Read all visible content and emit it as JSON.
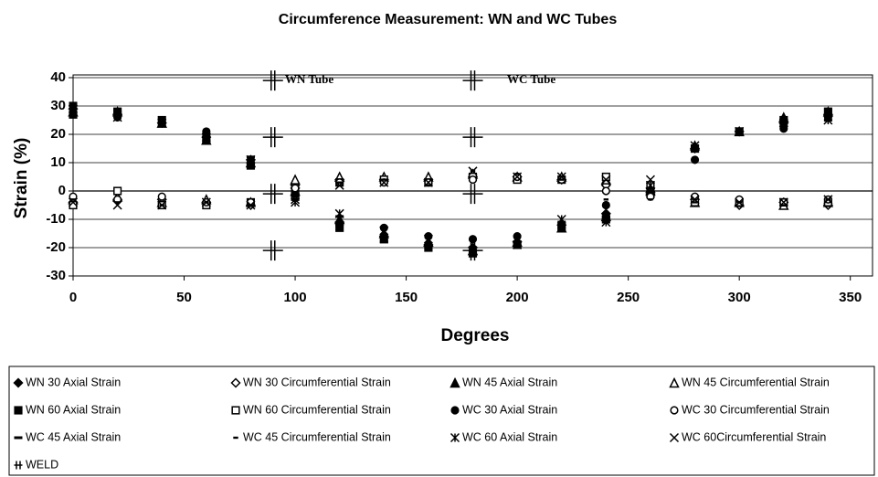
{
  "chart_data": {
    "type": "scatter",
    "title": "Circumference Measurement: WN and WC Tubes",
    "x_label": "Degrees",
    "y_label": "Strain (%)",
    "annotations": [
      "WN Tube",
      "WC Tube"
    ],
    "xlim": [
      0,
      360
    ],
    "xticks": [
      0,
      50,
      100,
      150,
      200,
      250,
      300,
      350
    ],
    "ylim": [
      -30,
      40
    ],
    "yticks": [
      -30,
      -20,
      -10,
      0,
      10,
      20,
      30,
      40
    ],
    "grid": true,
    "x": [
      0,
      20,
      40,
      60,
      80,
      100,
      120,
      140,
      160,
      180,
      200,
      220,
      240,
      260,
      280,
      300,
      320,
      340
    ],
    "series": [
      {
        "name": "WN 30 Axial Strain",
        "marker": "diamond",
        "filled": true,
        "color": "#000000",
        "values": [
          29,
          27,
          24,
          19,
          11,
          1,
          -11,
          -16,
          -19,
          -20,
          -18,
          -12,
          -8,
          1,
          15,
          21,
          24,
          27
        ]
      },
      {
        "name": "WN 30 Circumferential Strain",
        "marker": "diamond",
        "filled": false,
        "color": "#000000",
        "values": [
          -4,
          -3,
          -3,
          -4,
          -5,
          2,
          4,
          4,
          4,
          5,
          5,
          4,
          2,
          -1,
          -3,
          -5,
          -4,
          -5
        ]
      },
      {
        "name": "WN 45 Axial Strain",
        "marker": "triangle",
        "filled": true,
        "color": "#000000",
        "values": [
          28,
          28,
          24,
          18,
          10,
          0,
          -10,
          -15,
          -18,
          -21,
          -18,
          -13,
          -9,
          0,
          16,
          21,
          26,
          28
        ]
      },
      {
        "name": "WN 45 Circumferential Strain",
        "marker": "triangle",
        "filled": false,
        "color": "#000000",
        "values": [
          -3,
          -2,
          -4,
          -3,
          -4,
          4,
          5,
          5,
          5,
          6,
          5,
          5,
          4,
          1,
          -4,
          -4,
          -5,
          -4
        ]
      },
      {
        "name": "WN 60 Axial Strain",
        "marker": "square",
        "filled": true,
        "color": "#000000",
        "values": [
          27,
          28,
          25,
          18,
          9,
          -1,
          -13,
          -17,
          -20,
          -22,
          -19,
          -13,
          -10,
          -1,
          15,
          21,
          25,
          28
        ]
      },
      {
        "name": "WN 60 Circumferential Strain",
        "marker": "square",
        "filled": false,
        "color": "#000000",
        "values": [
          -5,
          0,
          -5,
          -5,
          -4,
          -2,
          3,
          4,
          3,
          5,
          4,
          4,
          5,
          2,
          -4,
          -4,
          -4,
          -4
        ]
      },
      {
        "name": "WC 30 Axial Strain",
        "marker": "circle",
        "filled": true,
        "color": "#000000",
        "values": [
          30,
          26,
          24,
          21,
          10,
          -1,
          -12,
          -13,
          -16,
          -17,
          -16,
          -13,
          -5,
          -2,
          11,
          21,
          22,
          26
        ]
      },
      {
        "name": "WC 30 Circumferential Strain",
        "marker": "circle",
        "filled": false,
        "color": "#000000",
        "values": [
          -2,
          -3,
          -2,
          -4,
          -4,
          1,
          3,
          3,
          3,
          4,
          5,
          4,
          0,
          -2,
          -2,
          -3,
          -4,
          -3
        ]
      },
      {
        "name": "WC 45  Axial Strain",
        "marker": "dash",
        "filled": true,
        "color": "#000000",
        "values": [
          31,
          28,
          23,
          20,
          12,
          -3,
          -9,
          -18,
          -20,
          -21,
          -19,
          -11,
          -9,
          1,
          14,
          20,
          23,
          25
        ]
      },
      {
        "name": "WC 45 Circumferential Strain",
        "marker": "smalldash",
        "filled": true,
        "color": "#000000",
        "values": [
          -3,
          -4,
          -5,
          -4,
          -5,
          -1,
          3,
          4,
          2,
          7,
          6,
          4,
          -3,
          -3,
          -4,
          -4,
          -5,
          -3
        ]
      },
      {
        "name": "WC 60  Axial Strain",
        "marker": "asterisk",
        "filled": true,
        "color": "#000000",
        "values": [
          29,
          26,
          24,
          19,
          11,
          -4,
          -8,
          -14,
          -17,
          -21,
          -19,
          -10,
          -11,
          2,
          16,
          21,
          24,
          25
        ]
      },
      {
        "name": "WC 60Circumferential Strain",
        "marker": "cross",
        "filled": true,
        "color": "#000000",
        "values": [
          -4,
          -5,
          -5,
          -4,
          -5,
          -3,
          2,
          3,
          3,
          7,
          5,
          5,
          4,
          4,
          -3,
          -4,
          -4,
          -3
        ]
      },
      {
        "name": "WELD",
        "marker": "plus",
        "filled": true,
        "color": "#000000",
        "x": [
          90,
          90,
          90,
          90,
          180,
          180,
          180,
          180
        ],
        "values": [
          39,
          19,
          -1,
          -21,
          39,
          19,
          -1,
          -21
        ]
      }
    ]
  }
}
